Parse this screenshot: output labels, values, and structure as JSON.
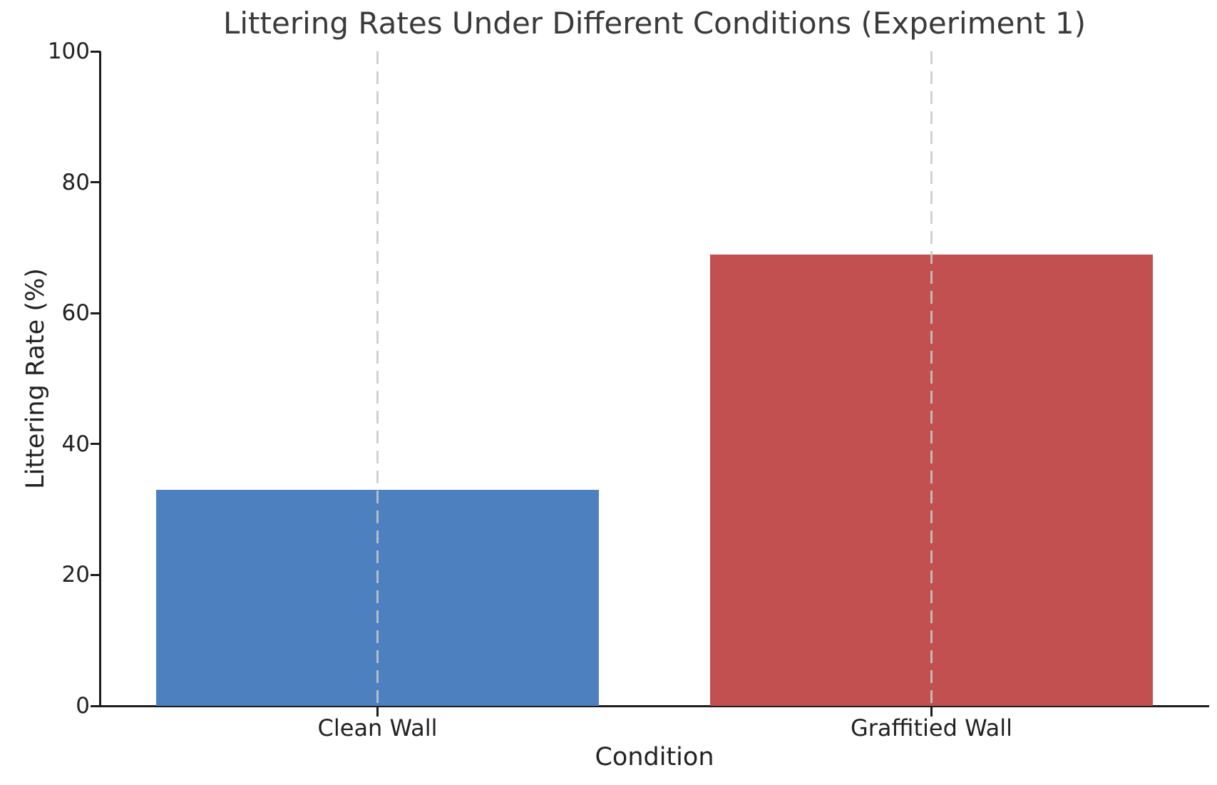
{
  "chart_data": {
    "type": "bar",
    "title": "Littering Rates Under Different Conditions (Experiment 1)",
    "categories": [
      "Clean Wall",
      "Graffitied Wall"
    ],
    "values": [
      33,
      69
    ],
    "bar_colors": [
      "#4C80BE",
      "#C35050"
    ],
    "xlabel": "Condition",
    "ylabel": "Littering Rate (%)",
    "ylim": [
      0,
      100
    ],
    "yticks": [
      0,
      20,
      40,
      60,
      80,
      100
    ],
    "legend": "none",
    "grid": {
      "style": "vertical dashed gridline at each category center, drawn over bars",
      "color": "#C9C9C9"
    },
    "spine_color": "#1C1C1C",
    "text_color": "#222222",
    "title_color": "#3A3A3A",
    "background_color": "#FFFFFF",
    "bar_width_fraction": 0.8
  }
}
